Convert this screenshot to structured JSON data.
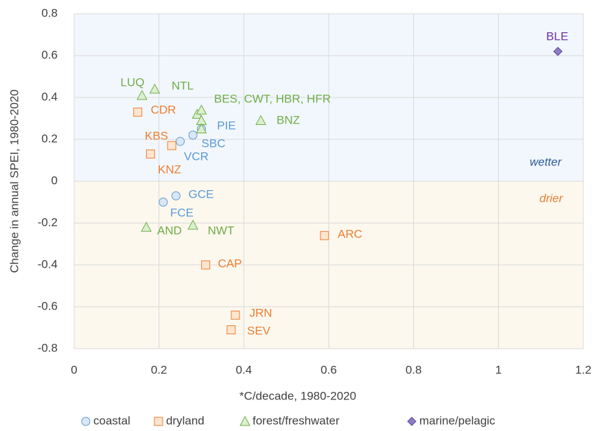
{
  "chart_data": {
    "type": "scatter",
    "x_label": "*C/decade, 1980-2020",
    "y_label": "Change in  annual SPEI, 1980-2020",
    "xlim": [
      0,
      1.2
    ],
    "xticks": [
      0,
      0.2,
      0.4,
      0.6,
      0.8,
      1,
      1.2
    ],
    "ylim": [
      -0.8,
      0.8
    ],
    "yticks": [
      -0.8,
      -0.6,
      -0.4,
      -0.2,
      0,
      0.2,
      0.4,
      0.6,
      0.8
    ],
    "grid": true,
    "legend": "bottom",
    "series": [
      {
        "name": "coastal",
        "marker": "circle",
        "color": "#5b9bd5",
        "fill": "#dae7f5",
        "x": [
          0.25,
          0.28,
          0.3,
          0.24,
          0.21
        ],
        "y": [
          0.19,
          0.22,
          0.25,
          -0.07,
          -0.1
        ]
      },
      {
        "name": "dryland",
        "marker": "square",
        "color": "#ed7d31",
        "fill": "#fde5cf",
        "x": [
          0.15,
          0.23,
          0.18,
          0.59,
          0.31,
          0.38,
          0.37
        ],
        "y": [
          0.33,
          0.17,
          0.13,
          -0.26,
          -0.4,
          -0.64,
          -0.71
        ]
      },
      {
        "name": "forest/freshwater",
        "marker": "triangle",
        "color": "#70ad47",
        "fill": "#dcefd0",
        "x": [
          0.16,
          0.19,
          0.29,
          0.3,
          0.3,
          0.3,
          0.44,
          0.17,
          0.28
        ],
        "y": [
          0.41,
          0.44,
          0.32,
          0.34,
          0.29,
          0.25,
          0.29,
          -0.22,
          -0.21
        ]
      },
      {
        "name": "marine/pelagic",
        "marker": "diamond",
        "color": "#5a4a9c",
        "fill": "#8e7cc3",
        "x": [
          1.14
        ],
        "y": [
          0.62
        ]
      }
    ],
    "annotations": [
      {
        "text": "LUQ",
        "color": "#70ad47"
      },
      {
        "text": "NTL",
        "color": "#70ad47"
      },
      {
        "text": "BES, CWT, HBR, HFR",
        "color": "#70ad47"
      },
      {
        "text": "CDR",
        "color": "#ed7d31"
      },
      {
        "text": "PIE",
        "color": "#5b9bd5"
      },
      {
        "text": "BNZ",
        "color": "#70ad47"
      },
      {
        "text": "KBS",
        "color": "#ed7d31"
      },
      {
        "text": "SBC",
        "color": "#5b9bd5"
      },
      {
        "text": "VCR",
        "color": "#5b9bd5"
      },
      {
        "text": "wetter",
        "color": "#2e5c9a"
      },
      {
        "text": "KNZ",
        "color": "#ed7d31"
      },
      {
        "text": "GCE",
        "color": "#5b9bd5"
      },
      {
        "text": "drier",
        "color": "#ed7d31"
      },
      {
        "text": "FCE",
        "color": "#5b9bd5"
      },
      {
        "text": "AND",
        "color": "#70ad47"
      },
      {
        "text": "NWT",
        "color": "#70ad47"
      },
      {
        "text": "ARC",
        "color": "#ed7d31"
      },
      {
        "text": "CAP",
        "color": "#ed7d31"
      },
      {
        "text": "JRN",
        "color": "#ed7d31"
      },
      {
        "text": "SEV",
        "color": "#ed7d31"
      },
      {
        "text": "BLE",
        "color": "#7030a0"
      }
    ]
  }
}
